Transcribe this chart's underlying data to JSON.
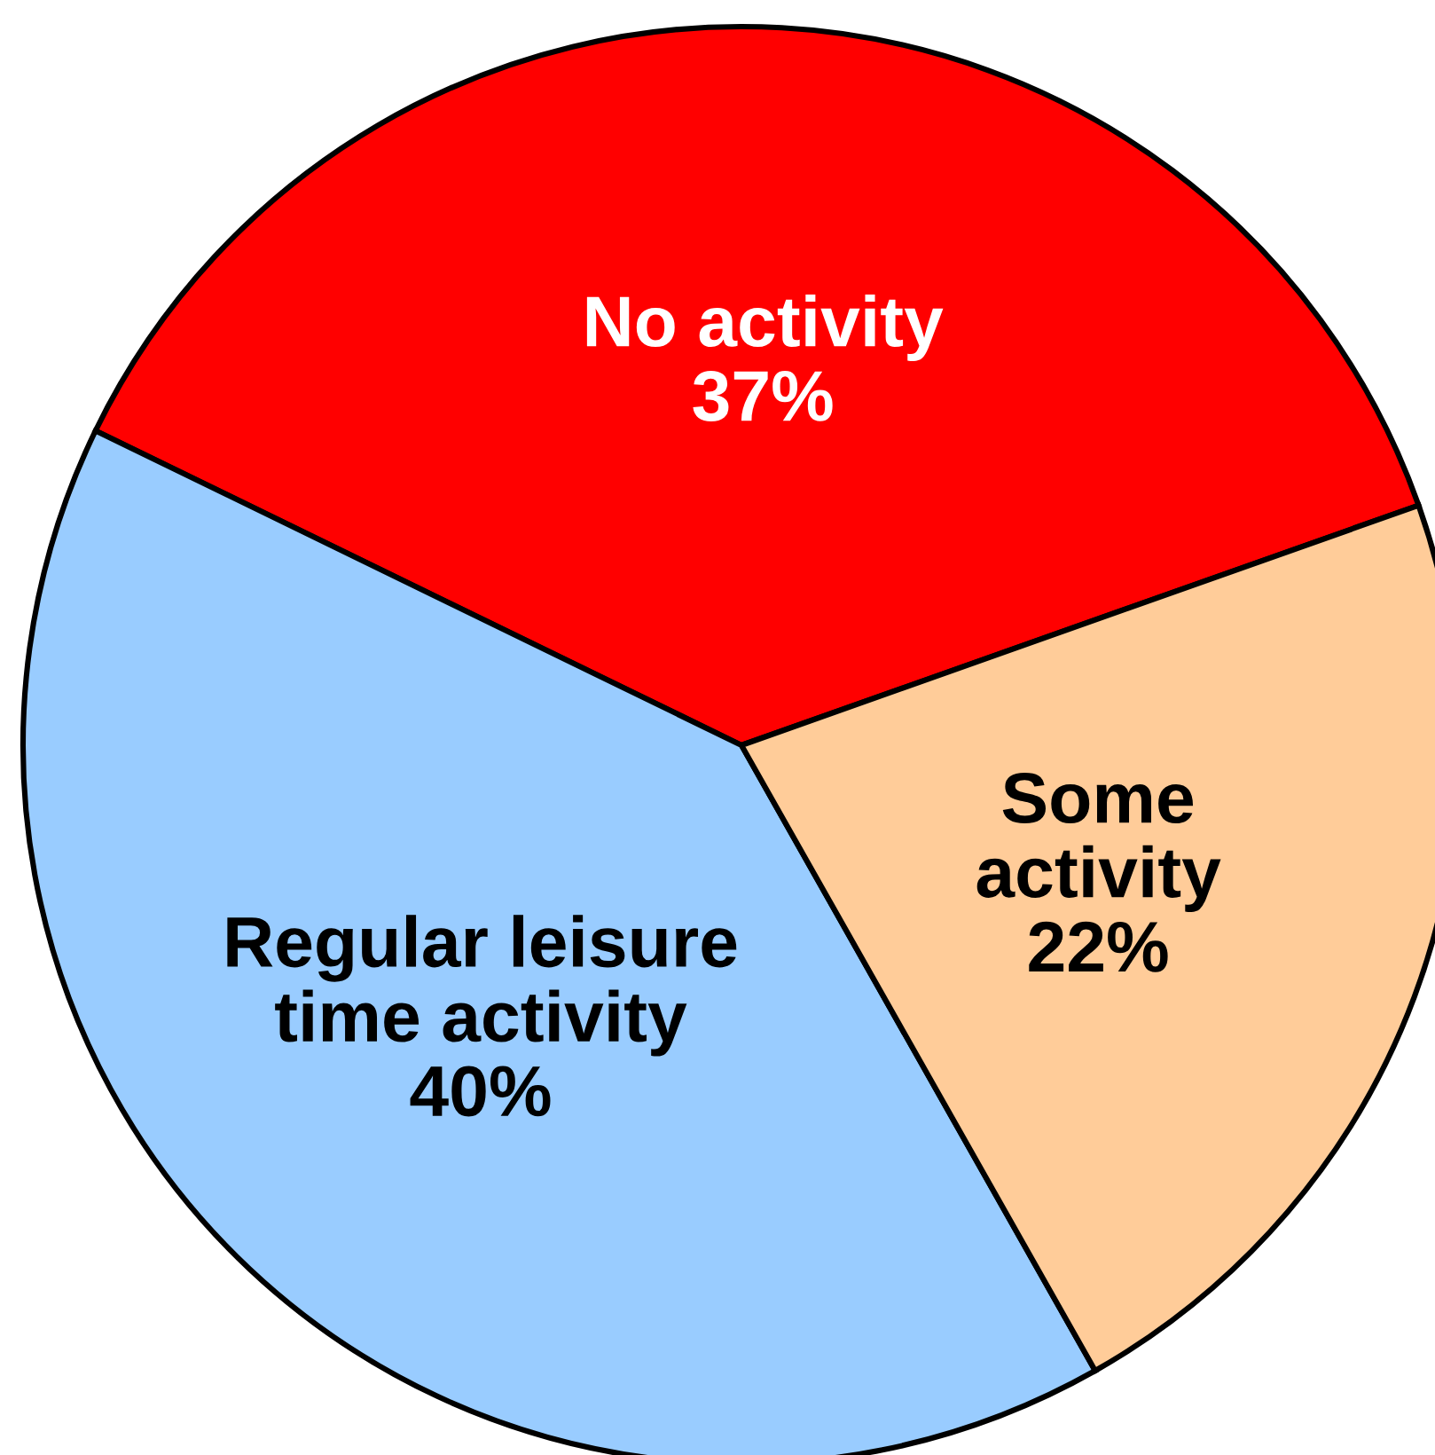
{
  "chart_data": {
    "type": "pie",
    "categories": [
      "No activity",
      "Regular leisure time activity",
      "Some activity"
    ],
    "values": [
      37,
      40,
      22
    ],
    "colors": [
      "#ff0000",
      "#99ccff",
      "#ffcc99"
    ],
    "value_labels": [
      "37%",
      "40%",
      "22%"
    ]
  }
}
